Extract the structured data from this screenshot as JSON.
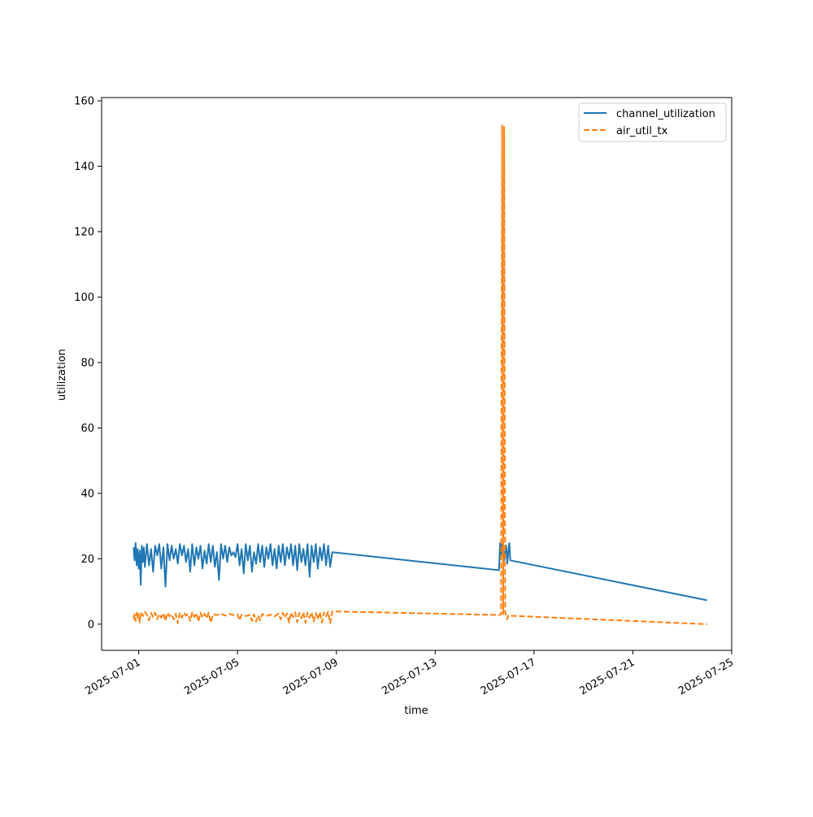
{
  "chart_data": {
    "type": "line",
    "title": "",
    "xlabel": "time",
    "ylabel": "utilization",
    "x_ticks": [
      "2025-07-01",
      "2025-07-05",
      "2025-07-09",
      "2025-07-13",
      "2025-07-17",
      "2025-07-21",
      "2025-07-25"
    ],
    "y_ticks": [
      0,
      20,
      40,
      60,
      80,
      100,
      120,
      140,
      160
    ],
    "xlim": [
      "2025-06-29T12:00",
      "2025-07-25T00:00"
    ],
    "ylim": [
      -8,
      161
    ],
    "grid": false,
    "legend_position": "top-right",
    "colors": {
      "channel_utilization": "#1f77b4",
      "air_util_tx": "#ff7f0e"
    },
    "series": [
      {
        "name": "channel_utilization",
        "line_style": "solid",
        "points": [
          [
            "2025-06-30T19:00",
            23.5
          ],
          [
            "2025-06-30T20:00",
            19.5
          ],
          [
            "2025-06-30T21:00",
            24.8
          ],
          [
            "2025-06-30T22:00",
            18.0
          ],
          [
            "2025-06-30T23:00",
            23.0
          ],
          [
            "2025-07-01T00:00",
            17.0
          ],
          [
            "2025-07-01T01:00",
            22.5
          ],
          [
            "2025-07-01T02:00",
            12.0
          ],
          [
            "2025-07-01T03:00",
            24.0
          ],
          [
            "2025-07-01T04:00",
            19.0
          ],
          [
            "2025-07-01T05:00",
            23.5
          ],
          [
            "2025-07-01T06:00",
            17.5
          ],
          [
            "2025-07-01T08:00",
            24.5
          ],
          [
            "2025-07-01T10:00",
            18.0
          ],
          [
            "2025-07-01T12:00",
            23.0
          ],
          [
            "2025-07-01T14:00",
            16.0
          ],
          [
            "2025-07-01T16:00",
            24.0
          ],
          [
            "2025-07-01T18:00",
            21.0
          ],
          [
            "2025-07-01T20:00",
            24.5
          ],
          [
            "2025-07-01T22:00",
            17.0
          ],
          [
            "2025-07-02T00:00",
            23.5
          ],
          [
            "2025-07-02T02:00",
            11.5
          ],
          [
            "2025-07-02T04:00",
            24.5
          ],
          [
            "2025-07-02T06:00",
            19.5
          ],
          [
            "2025-07-02T08:00",
            24.0
          ],
          [
            "2025-07-02T10:00",
            20.0
          ],
          [
            "2025-07-02T12:00",
            23.0
          ],
          [
            "2025-07-02T14:00",
            18.5
          ],
          [
            "2025-07-02T16:00",
            24.5
          ],
          [
            "2025-07-02T18:00",
            21.0
          ],
          [
            "2025-07-02T20:00",
            24.0
          ],
          [
            "2025-07-02T22:00",
            19.0
          ],
          [
            "2025-07-03T00:00",
            23.0
          ],
          [
            "2025-07-03T02:00",
            16.0
          ],
          [
            "2025-07-03T04:00",
            24.5
          ],
          [
            "2025-07-03T06:00",
            18.0
          ],
          [
            "2025-07-03T08:00",
            23.5
          ],
          [
            "2025-07-03T10:00",
            20.0
          ],
          [
            "2025-07-03T12:00",
            24.0
          ],
          [
            "2025-07-03T14:00",
            17.0
          ],
          [
            "2025-07-03T16:00",
            22.5
          ],
          [
            "2025-07-03T18:00",
            18.5
          ],
          [
            "2025-07-03T20:00",
            24.5
          ],
          [
            "2025-07-03T22:00",
            19.0
          ],
          [
            "2025-07-04T00:00",
            24.0
          ],
          [
            "2025-07-04T02:00",
            17.5
          ],
          [
            "2025-07-04T04:00",
            22.0
          ],
          [
            "2025-07-04T06:00",
            13.5
          ],
          [
            "2025-07-04T08:00",
            24.5
          ],
          [
            "2025-07-04T10:00",
            20.0
          ],
          [
            "2025-07-04T12:00",
            24.0
          ],
          [
            "2025-07-04T14:00",
            19.0
          ],
          [
            "2025-07-04T16:00",
            23.5
          ],
          [
            "2025-07-04T18:00",
            21.0
          ],
          [
            "2025-07-04T20:00",
            22.0
          ],
          [
            "2025-07-04T22:00",
            20.5
          ],
          [
            "2025-07-05T00:00",
            24.5
          ],
          [
            "2025-07-05T02:00",
            18.0
          ],
          [
            "2025-07-05T04:00",
            23.0
          ],
          [
            "2025-07-05T06:00",
            15.5
          ],
          [
            "2025-07-05T08:00",
            24.5
          ],
          [
            "2025-07-05T10:00",
            19.5
          ],
          [
            "2025-07-05T12:00",
            24.0
          ],
          [
            "2025-07-05T14:00",
            16.0
          ],
          [
            "2025-07-05T16:00",
            22.0
          ],
          [
            "2025-07-05T18:00",
            18.5
          ],
          [
            "2025-07-05T20:00",
            24.5
          ],
          [
            "2025-07-05T22:00",
            19.0
          ],
          [
            "2025-07-06T00:00",
            24.0
          ],
          [
            "2025-07-06T02:00",
            17.5
          ],
          [
            "2025-07-06T04:00",
            23.5
          ],
          [
            "2025-07-06T06:00",
            20.0
          ],
          [
            "2025-07-06T08:00",
            24.5
          ],
          [
            "2025-07-06T10:00",
            18.0
          ],
          [
            "2025-07-06T12:00",
            23.0
          ],
          [
            "2025-07-06T14:00",
            17.0
          ],
          [
            "2025-07-06T16:00",
            24.0
          ],
          [
            "2025-07-06T18:00",
            19.0
          ],
          [
            "2025-07-06T20:00",
            24.5
          ],
          [
            "2025-07-06T22:00",
            18.0
          ],
          [
            "2025-07-07T00:00",
            23.5
          ],
          [
            "2025-07-07T02:00",
            20.0
          ],
          [
            "2025-07-07T04:00",
            24.5
          ],
          [
            "2025-07-07T06:00",
            18.0
          ],
          [
            "2025-07-07T08:00",
            24.0
          ],
          [
            "2025-07-07T10:00",
            16.5
          ],
          [
            "2025-07-07T12:00",
            24.5
          ],
          [
            "2025-07-07T14:00",
            19.0
          ],
          [
            "2025-07-07T16:00",
            23.0
          ],
          [
            "2025-07-07T18:00",
            18.0
          ],
          [
            "2025-07-07T20:00",
            24.5
          ],
          [
            "2025-07-07T22:00",
            14.5
          ],
          [
            "2025-07-08T00:00",
            24.0
          ],
          [
            "2025-07-08T02:00",
            19.0
          ],
          [
            "2025-07-08T04:00",
            24.5
          ],
          [
            "2025-07-08T06:00",
            17.0
          ],
          [
            "2025-07-08T08:00",
            23.5
          ],
          [
            "2025-07-08T10:00",
            19.5
          ],
          [
            "2025-07-08T12:00",
            24.5
          ],
          [
            "2025-07-08T14:00",
            18.0
          ],
          [
            "2025-07-08T16:00",
            24.0
          ],
          [
            "2025-07-08T18:00",
            17.5
          ],
          [
            "2025-07-08T20:00",
            22.0
          ],
          [
            "2025-07-15T14:00",
            16.5
          ],
          [
            "2025-07-15T15:00",
            24.8
          ],
          [
            "2025-07-15T16:00",
            21.0
          ],
          [
            "2025-07-15T17:00",
            24.5
          ],
          [
            "2025-07-15T18:00",
            21.5
          ],
          [
            "2025-07-15T19:00",
            19.5
          ],
          [
            "2025-07-15T20:00",
            22.5
          ],
          [
            "2025-07-15T21:00",
            24.0
          ],
          [
            "2025-07-15T22:00",
            18.5
          ],
          [
            "2025-07-15T23:00",
            22.0
          ],
          [
            "2025-07-16T00:00",
            24.8
          ],
          [
            "2025-07-16T01:00",
            19.5
          ],
          [
            "2025-07-24T00:00",
            7.3
          ]
        ]
      },
      {
        "name": "air_util_tx",
        "line_style": "dashed",
        "points": [
          [
            "2025-06-30T19:00",
            1.5
          ],
          [
            "2025-06-30T20:00",
            3.0
          ],
          [
            "2025-06-30T21:00",
            1.0
          ],
          [
            "2025-06-30T22:00",
            3.5
          ],
          [
            "2025-06-30T23:00",
            2.0
          ],
          [
            "2025-07-01T00:00",
            3.2
          ],
          [
            "2025-07-01T01:00",
            0.5
          ],
          [
            "2025-07-01T02:00",
            3.6
          ],
          [
            "2025-07-01T04:00",
            2.5
          ],
          [
            "2025-07-01T06:00",
            3.8
          ],
          [
            "2025-07-01T08:00",
            2.8
          ],
          [
            "2025-07-01T10:00",
            1.2
          ],
          [
            "2025-07-01T12:00",
            3.4
          ],
          [
            "2025-07-01T14:00",
            2.2
          ],
          [
            "2025-07-01T16:00",
            3.5
          ],
          [
            "2025-07-01T18:00",
            1.5
          ],
          [
            "2025-07-01T20:00",
            3.1
          ],
          [
            "2025-07-01T22:00",
            2.0
          ],
          [
            "2025-07-02T00:00",
            3.3
          ],
          [
            "2025-07-02T02:00",
            1.0
          ],
          [
            "2025-07-02T04:00",
            3.5
          ],
          [
            "2025-07-02T06:00",
            2.4
          ],
          [
            "2025-07-02T08:00",
            3.0
          ],
          [
            "2025-07-02T10:00",
            1.5
          ],
          [
            "2025-07-02T12:00",
            3.2
          ],
          [
            "2025-07-02T14:00",
            0.3
          ],
          [
            "2025-07-02T16:00",
            3.4
          ],
          [
            "2025-07-02T18:00",
            2.0
          ],
          [
            "2025-07-02T20:00",
            3.5
          ],
          [
            "2025-07-02T22:00",
            2.6
          ],
          [
            "2025-07-03T00:00",
            3.1
          ],
          [
            "2025-07-03T02:00",
            1.0
          ],
          [
            "2025-07-03T04:00",
            3.6
          ],
          [
            "2025-07-03T06:00",
            2.2
          ],
          [
            "2025-07-03T08:00",
            3.4
          ],
          [
            "2025-07-03T10:00",
            0.8
          ],
          [
            "2025-07-03T12:00",
            3.5
          ],
          [
            "2025-07-03T14:00",
            2.0
          ],
          [
            "2025-07-03T16:00",
            3.2
          ],
          [
            "2025-07-03T18:00",
            1.8
          ],
          [
            "2025-07-03T20:00",
            3.5
          ],
          [
            "2025-07-03T22:00",
            0.5
          ],
          [
            "2025-07-04T00:00",
            3.0
          ],
          [
            "2025-07-04T04:00",
            2.8
          ],
          [
            "2025-07-04T08:00",
            3.2
          ],
          [
            "2025-07-04T12:00",
            2.6
          ],
          [
            "2025-07-04T16:00",
            3.1
          ],
          [
            "2025-07-04T20:00",
            2.8
          ],
          [
            "2025-07-05T00:00",
            3.0
          ],
          [
            "2025-07-05T02:00",
            1.2
          ],
          [
            "2025-07-05T04:00",
            2.9
          ],
          [
            "2025-07-05T08:00",
            2.5
          ],
          [
            "2025-07-05T12:00",
            2.8
          ],
          [
            "2025-07-05T14:00",
            1.0
          ],
          [
            "2025-07-05T16:00",
            3.0
          ],
          [
            "2025-07-05T18:00",
            0.8
          ],
          [
            "2025-07-05T20:00",
            2.6
          ],
          [
            "2025-07-05T22:00",
            1.2
          ],
          [
            "2025-07-06T00:00",
            3.1
          ],
          [
            "2025-07-06T04:00",
            2.5
          ],
          [
            "2025-07-06T08:00",
            2.9
          ],
          [
            "2025-07-06T12:00",
            2.4
          ],
          [
            "2025-07-06T16:00",
            3.2
          ],
          [
            "2025-07-06T18:00",
            1.5
          ],
          [
            "2025-07-06T20:00",
            3.5
          ],
          [
            "2025-07-06T22:00",
            2.0
          ],
          [
            "2025-07-07T00:00",
            3.3
          ],
          [
            "2025-07-07T02:00",
            0.5
          ],
          [
            "2025-07-07T04:00",
            3.5
          ],
          [
            "2025-07-07T06:00",
            2.2
          ],
          [
            "2025-07-07T08:00",
            3.6
          ],
          [
            "2025-07-07T10:00",
            0.6
          ],
          [
            "2025-07-07T12:00",
            3.4
          ],
          [
            "2025-07-07T14:00",
            1.8
          ],
          [
            "2025-07-07T16:00",
            3.6
          ],
          [
            "2025-07-07T18:00",
            0.4
          ],
          [
            "2025-07-07T20:00",
            3.5
          ],
          [
            "2025-07-07T22:00",
            2.0
          ],
          [
            "2025-07-08T00:00",
            3.6
          ],
          [
            "2025-07-08T02:00",
            0.8
          ],
          [
            "2025-07-08T04:00",
            3.4
          ],
          [
            "2025-07-08T06:00",
            1.5
          ],
          [
            "2025-07-08T08:00",
            3.7
          ],
          [
            "2025-07-08T10:00",
            0.5
          ],
          [
            "2025-07-08T12:00",
            3.6
          ],
          [
            "2025-07-08T14:00",
            2.4
          ],
          [
            "2025-07-08T16:00",
            3.8
          ],
          [
            "2025-07-08T18:00",
            0.3
          ],
          [
            "2025-07-08T20:00",
            3.9
          ],
          [
            "2025-07-15T14:00",
            2.8
          ],
          [
            "2025-07-15T16:00",
            3.0
          ],
          [
            "2025-07-15T17:00",
            152.5
          ],
          [
            "2025-07-15T18:00",
            3.0
          ],
          [
            "2025-07-15T19:00",
            152.0
          ],
          [
            "2025-07-15T20:00",
            3.5
          ],
          [
            "2025-07-15T21:00",
            2.5
          ],
          [
            "2025-07-15T22:00",
            1.5
          ],
          [
            "2025-07-15T23:00",
            2.6
          ],
          [
            "2025-07-24T00:00",
            0.0
          ]
        ]
      }
    ]
  }
}
